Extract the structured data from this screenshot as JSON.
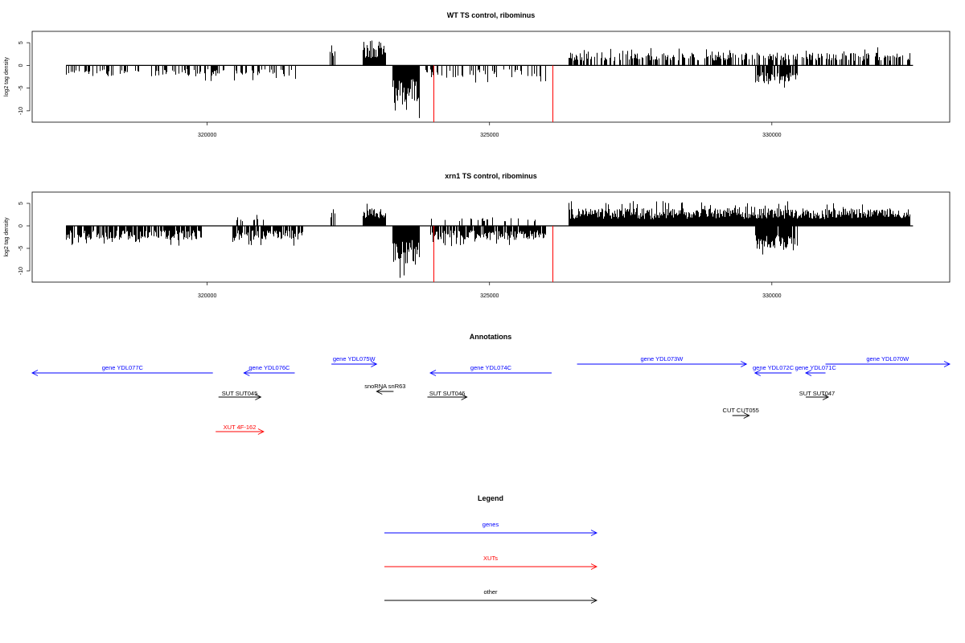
{
  "chart_data": [
    {
      "type": "bar",
      "title": "WT TS control, ribominus",
      "ylabel": "log2 tag density",
      "xlabel": "",
      "xlim": [
        316900,
        333150
      ],
      "ylim": [
        -12.5,
        7.5
      ],
      "yticks": [
        -10,
        -5,
        0,
        5
      ],
      "xticks": [
        320000,
        325000,
        330000
      ],
      "grid": false,
      "baseline": {
        "x_start": 317500,
        "x_end": 332500
      },
      "segments": [
        {
          "x_start": 317500,
          "x_end": 321560,
          "sign": -1,
          "density": 0.35,
          "amp_min": 0.8,
          "amp_max": 3.5,
          "spike_rate": 0.1
        },
        {
          "x_start": 322150,
          "x_end": 322250,
          "sign": 1,
          "density": 0.6,
          "amp_min": 1.5,
          "amp_max": 4.5,
          "spike_rate": 0.2
        },
        {
          "x_start": 322750,
          "x_end": 323150,
          "sign": 1,
          "density": 1.0,
          "amp_min": 1.5,
          "amp_max": 5.5,
          "spike_rate": 0.2
        },
        {
          "x_start": 323280,
          "x_end": 323750,
          "sign": -1,
          "density": 1.0,
          "amp_min": 3.0,
          "amp_max": 12.0,
          "spike_rate": 0.3
        },
        {
          "x_start": 323850,
          "x_end": 326000,
          "sign": -1,
          "density": 0.35,
          "amp_min": 0.8,
          "amp_max": 4.0,
          "spike_rate": 0.1
        },
        {
          "x_start": 326400,
          "x_end": 332450,
          "sign": 1,
          "density": 0.55,
          "amp_min": 1.0,
          "amp_max": 4.0,
          "spike_rate": 0.15
        },
        {
          "x_start": 329700,
          "x_end": 330450,
          "sign": -1,
          "density": 0.9,
          "amp_min": 1.5,
          "amp_max": 5.5,
          "spike_rate": 0.2
        }
      ],
      "markers": [
        {
          "x": 324000,
          "value": -12.5,
          "color": "#ff0000"
        },
        {
          "x": 326120,
          "value": -12.5,
          "color": "#ff0000"
        }
      ]
    },
    {
      "type": "bar",
      "title": "xrn1 TS control, ribominus",
      "ylabel": "log2 tag density",
      "xlabel": "",
      "xlim": [
        316900,
        333150
      ],
      "ylim": [
        -12.5,
        7.5
      ],
      "yticks": [
        -10,
        -5,
        0,
        5
      ],
      "xticks": [
        320000,
        325000,
        330000
      ],
      "grid": false,
      "baseline": {
        "x_start": 317500,
        "x_end": 332500
      },
      "segments": [
        {
          "x_start": 317500,
          "x_end": 319900,
          "sign": -1,
          "density": 0.8,
          "amp_min": 1.0,
          "amp_max": 4.5,
          "spike_rate": 0.15
        },
        {
          "x_start": 320450,
          "x_end": 321700,
          "sign": -1,
          "density": 0.8,
          "amp_min": 1.0,
          "amp_max": 4.5,
          "spike_rate": 0.15
        },
        {
          "x_start": 320450,
          "x_end": 321000,
          "sign": 1,
          "density": 0.2,
          "amp_min": 1.0,
          "amp_max": 2.5,
          "spike_rate": 0.1
        },
        {
          "x_start": 322150,
          "x_end": 322250,
          "sign": 1,
          "density": 0.6,
          "amp_min": 1.5,
          "amp_max": 4.5,
          "spike_rate": 0.2
        },
        {
          "x_start": 322750,
          "x_end": 323150,
          "sign": 1,
          "density": 1.0,
          "amp_min": 1.5,
          "amp_max": 5.5,
          "spike_rate": 0.2
        },
        {
          "x_start": 323280,
          "x_end": 323750,
          "sign": -1,
          "density": 1.0,
          "amp_min": 3.0,
          "amp_max": 12.0,
          "spike_rate": 0.3
        },
        {
          "x_start": 323950,
          "x_end": 326000,
          "sign": -1,
          "density": 0.8,
          "amp_min": 1.0,
          "amp_max": 4.5,
          "spike_rate": 0.15
        },
        {
          "x_start": 323950,
          "x_end": 326000,
          "sign": 1,
          "density": 0.15,
          "amp_min": 1.0,
          "amp_max": 2.5,
          "spike_rate": 0.1
        },
        {
          "x_start": 326400,
          "x_end": 332450,
          "sign": 1,
          "density": 1.0,
          "amp_min": 1.5,
          "amp_max": 5.5,
          "spike_rate": 0.2
        },
        {
          "x_start": 329700,
          "x_end": 330450,
          "sign": -1,
          "density": 0.9,
          "amp_min": 2.0,
          "amp_max": 7.0,
          "spike_rate": 0.25
        }
      ],
      "markers": [
        {
          "x": 324000,
          "value": -12.5,
          "color": "#ff0000"
        },
        {
          "x": 326120,
          "value": -12.5,
          "color": "#ff0000"
        }
      ]
    }
  ],
  "annotations": {
    "title": "Annotations",
    "colors": {
      "gene": "#0000ff",
      "xut": "#ff0000",
      "other": "#000000"
    },
    "features": [
      {
        "label": "gene YDL077C",
        "kind": "gene",
        "x_start": 316900,
        "x_end": 320100,
        "strand": "-",
        "row": 1
      },
      {
        "label": "gene YDL076C",
        "kind": "gene",
        "x_start": 320650,
        "x_end": 321550,
        "strand": "-",
        "row": 1
      },
      {
        "label": "gene YDL075W",
        "kind": "gene",
        "x_start": 322200,
        "x_end": 323000,
        "strand": "+",
        "row": 0
      },
      {
        "label": "gene YDL074C",
        "kind": "gene",
        "x_start": 323950,
        "x_end": 326100,
        "strand": "-",
        "row": 1
      },
      {
        "label": "gene YDL073W",
        "kind": "gene",
        "x_start": 326550,
        "x_end": 329550,
        "strand": "+",
        "row": 0
      },
      {
        "label": "gene YDL072C",
        "kind": "gene",
        "x_start": 329700,
        "x_end": 330350,
        "strand": "-",
        "row": 1
      },
      {
        "label": "gene YDL071C",
        "kind": "gene",
        "x_start": 330600,
        "x_end": 330950,
        "strand": "-",
        "row": 1
      },
      {
        "label": "gene YDL070W",
        "kind": "gene",
        "x_start": 330950,
        "x_end": 333150,
        "strand": "+",
        "row": 0
      },
      {
        "label": "snoRNA snR63",
        "kind": "other",
        "x_start": 323000,
        "x_end": 323300,
        "strand": "-",
        "row": 2
      },
      {
        "label": "SUT SUT045",
        "kind": "other",
        "x_start": 320200,
        "x_end": 320950,
        "strand": "+",
        "row": 3
      },
      {
        "label": "SUT SUT046",
        "kind": "other",
        "x_start": 323900,
        "x_end": 324600,
        "strand": "+",
        "row": 3
      },
      {
        "label": "SUT SUT047",
        "kind": "other",
        "x_start": 330600,
        "x_end": 331000,
        "strand": "+",
        "row": 3
      },
      {
        "label": "CUT CUT055",
        "kind": "other",
        "x_start": 329300,
        "x_end": 329600,
        "strand": "+",
        "row": 4
      },
      {
        "label": "XUT 4F-162",
        "kind": "xut",
        "x_start": 320150,
        "x_end": 321000,
        "strand": "+",
        "row": 5
      }
    ]
  },
  "legend": {
    "title": "Legend",
    "items": [
      {
        "label": "genes",
        "color": "#0000ff"
      },
      {
        "label": "XUTs",
        "color": "#ff0000"
      },
      {
        "label": "other",
        "color": "#000000"
      }
    ]
  }
}
